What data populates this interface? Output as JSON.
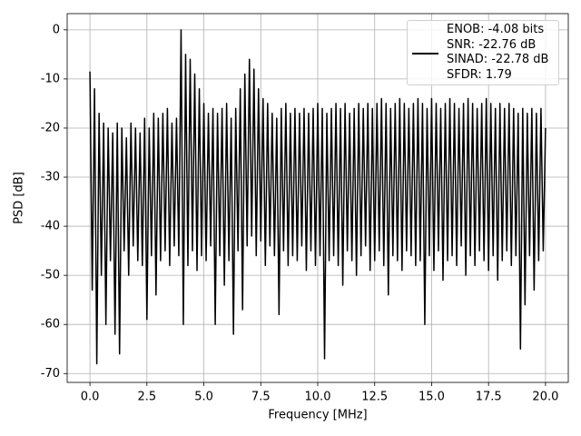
{
  "chart_data": {
    "type": "line",
    "xlabel": "Frequency [MHz]",
    "ylabel": "PSD [dB]",
    "xlim": [
      -1,
      21
    ],
    "ylim": [
      -71.8,
      3.3
    ],
    "xticks": [
      {
        "value": 0,
        "label": "0.0"
      },
      2.5,
      {
        "value": 5,
        "label": "5.0"
      },
      7.5,
      {
        "value": 10,
        "label": "10.0"
      },
      12.5,
      {
        "value": 15,
        "label": "15.0"
      },
      17.5,
      {
        "value": 20,
        "label": "20.0"
      }
    ],
    "yticks": [
      0,
      -10,
      -20,
      -30,
      -40,
      -50,
      -60,
      -70
    ],
    "grid": true,
    "legend": "upper right",
    "x": [
      0,
      0.1,
      0.2,
      0.3,
      0.4,
      0.5,
      0.6,
      0.7,
      0.8,
      0.9,
      1,
      1.1,
      1.2,
      1.3,
      1.4,
      1.5,
      1.6,
      1.7,
      1.8,
      1.9,
      2,
      2.1,
      2.2,
      2.3,
      2.4,
      2.5,
      2.6,
      2.7,
      2.8,
      2.9,
      3,
      3.1,
      3.2,
      3.3,
      3.4,
      3.5,
      3.6,
      3.7,
      3.8,
      3.9,
      4,
      4.1,
      4.2,
      4.3,
      4.4,
      4.5,
      4.6,
      4.7,
      4.8,
      4.9,
      5,
      5.1,
      5.2,
      5.3,
      5.4,
      5.5,
      5.6,
      5.7,
      5.8,
      5.9,
      6,
      6.1,
      6.2,
      6.3,
      6.4,
      6.5,
      6.6,
      6.7,
      6.8,
      6.9,
      7,
      7.1,
      7.2,
      7.3,
      7.4,
      7.5,
      7.6,
      7.7,
      7.8,
      7.9,
      8,
      8.1,
      8.2,
      8.3,
      8.4,
      8.5,
      8.6,
      8.7,
      8.8,
      8.9,
      9,
      9.1,
      9.2,
      9.3,
      9.4,
      9.5,
      9.6,
      9.7,
      9.8,
      9.9,
      10,
      10.1,
      10.2,
      10.3,
      10.4,
      10.5,
      10.6,
      10.7,
      10.8,
      10.9,
      11,
      11.1,
      11.2,
      11.3,
      11.4,
      11.5,
      11.6,
      11.7,
      11.8,
      11.9,
      12,
      12.1,
      12.2,
      12.3,
      12.4,
      12.5,
      12.6,
      12.7,
      12.8,
      12.9,
      13,
      13.1,
      13.2,
      13.3,
      13.4,
      13.5,
      13.6,
      13.7,
      13.8,
      13.9,
      14,
      14.1,
      14.2,
      14.3,
      14.4,
      14.5,
      14.6,
      14.7,
      14.8,
      14.9,
      15,
      15.1,
      15.2,
      15.3,
      15.4,
      15.5,
      15.6,
      15.7,
      15.8,
      15.9,
      16,
      16.1,
      16.2,
      16.3,
      16.4,
      16.5,
      16.6,
      16.7,
      16.8,
      16.9,
      17,
      17.1,
      17.2,
      17.3,
      17.4,
      17.5,
      17.6,
      17.7,
      17.8,
      17.9,
      18,
      18.1,
      18.2,
      18.3,
      18.4,
      18.5,
      18.6,
      18.7,
      18.8,
      18.9,
      19,
      19.1,
      19.2,
      19.3,
      19.4,
      19.5,
      19.6,
      19.7,
      19.8,
      19.9,
      20
    ],
    "series": [
      {
        "name": "ENOB: -4.08 bits\nSNR: -22.76 dB\nSINAD: -22.78 dB\nSFDR: 1.79",
        "color": "#000000",
        "values": [
          -8.5,
          -53,
          -12,
          -68,
          -17,
          -50,
          -19,
          -60,
          -20,
          -47,
          -21,
          -62,
          -19,
          -66,
          -20,
          -45,
          -22,
          -50,
          -19,
          -44,
          -20,
          -47,
          -21,
          -48,
          -18,
          -59,
          -20,
          -46,
          -17,
          -54,
          -18,
          -47,
          -17,
          -45,
          -16,
          -48,
          -19,
          -44,
          -18,
          -46,
          0,
          -60,
          -5,
          -48,
          -6,
          -45,
          -9,
          -49,
          -12,
          -46,
          -15,
          -47,
          -17,
          -44,
          -16,
          -60,
          -17,
          -46,
          -16,
          -52,
          -15,
          -47,
          -18,
          -62,
          -16,
          -45,
          -12,
          -57,
          -9,
          -44,
          -6,
          -42,
          -8,
          -46,
          -12,
          -43,
          -14,
          -48,
          -15,
          -44,
          -17,
          -46,
          -18,
          -58,
          -16,
          -45,
          -15,
          -48,
          -17,
          -46,
          -16,
          -47,
          -17,
          -44,
          -16,
          -49,
          -17,
          -45,
          -16,
          -48,
          -15,
          -46,
          -16,
          -67,
          -17,
          -47,
          -16,
          -46,
          -15,
          -48,
          -16,
          -52,
          -15,
          -45,
          -17,
          -47,
          -16,
          -50,
          -15,
          -46,
          -16,
          -44,
          -15,
          -49,
          -16,
          -47,
          -15,
          -45,
          -14,
          -48,
          -15,
          -54,
          -16,
          -46,
          -15,
          -47,
          -14,
          -49,
          -15,
          -45,
          -16,
          -46,
          -15,
          -48,
          -14,
          -47,
          -15,
          -60,
          -16,
          -46,
          -14,
          -49,
          -15,
          -45,
          -16,
          -51,
          -15,
          -47,
          -14,
          -46,
          -15,
          -48,
          -16,
          -44,
          -15,
          -50,
          -14,
          -46,
          -15,
          -48,
          -16,
          -45,
          -15,
          -47,
          -14,
          -49,
          -15,
          -46,
          -16,
          -51,
          -15,
          -47,
          -16,
          -45,
          -15,
          -48,
          -16,
          -46,
          -17,
          -65,
          -16,
          -56,
          -17,
          -46,
          -16,
          -53,
          -17,
          -47,
          -16,
          -45,
          -20
        ]
      }
    ]
  }
}
